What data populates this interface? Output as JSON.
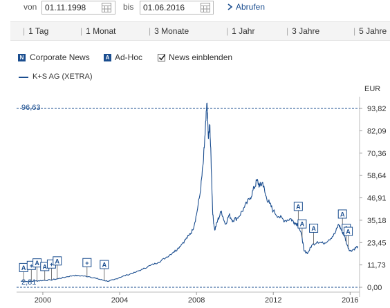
{
  "controls": {
    "from_label": "von",
    "from_value": "01.11.1998",
    "to_label": "bis",
    "to_value": "01.06.2016",
    "submit_label": "Abrufen"
  },
  "ranges": [
    "1 Tag",
    "1 Monat",
    "3 Monate",
    "1 Jahr",
    "3 Jahre",
    "5 Jahre"
  ],
  "legend": {
    "corporate_news": "Corporate News",
    "corporate_badge": "N",
    "adhoc": "Ad-Hoc",
    "adhoc_badge": "A",
    "show_news": "News einblenden",
    "show_news_checked": true
  },
  "colors": {
    "line": "#1a4d8f",
    "text": "#333333"
  },
  "chart_data": {
    "type": "line",
    "series": [
      {
        "name": "K+S AG (XETRA)",
        "points": [
          [
            1998.85,
            3.2
          ],
          [
            1999.2,
            3.0
          ],
          [
            1999.6,
            3.3
          ],
          [
            2000.0,
            3.6
          ],
          [
            2000.4,
            3.8
          ],
          [
            2000.8,
            4.5
          ],
          [
            2001.2,
            5.4
          ],
          [
            2001.6,
            6.2
          ],
          [
            2002.0,
            6.0
          ],
          [
            2002.4,
            5.6
          ],
          [
            2002.8,
            4.6
          ],
          [
            2003.1,
            3.8
          ],
          [
            2003.4,
            3.2
          ],
          [
            2003.7,
            3.9
          ],
          [
            2004.0,
            5.2
          ],
          [
            2004.4,
            6.5
          ],
          [
            2004.8,
            7.8
          ],
          [
            2005.2,
            9.5
          ],
          [
            2005.6,
            11.5
          ],
          [
            2006.0,
            13.0
          ],
          [
            2006.4,
            15.5
          ],
          [
            2006.8,
            18.5
          ],
          [
            2007.0,
            20.0
          ],
          [
            2007.3,
            23.5
          ],
          [
            2007.6,
            27.0
          ],
          [
            2007.8,
            30.0
          ],
          [
            2008.0,
            38.0
          ],
          [
            2008.2,
            50.0
          ],
          [
            2008.35,
            65.0
          ],
          [
            2008.45,
            80.0
          ],
          [
            2008.55,
            96.63
          ],
          [
            2008.62,
            78.0
          ],
          [
            2008.7,
            85.0
          ],
          [
            2008.78,
            60.0
          ],
          [
            2008.85,
            38.0
          ],
          [
            2008.95,
            30.0
          ],
          [
            2009.1,
            35.0
          ],
          [
            2009.3,
            40.0
          ],
          [
            2009.5,
            33.0
          ],
          [
            2009.7,
            38.0
          ],
          [
            2009.9,
            35.0
          ],
          [
            2010.2,
            37.0
          ],
          [
            2010.5,
            42.0
          ],
          [
            2010.8,
            47.0
          ],
          [
            2011.0,
            52.0
          ],
          [
            2011.15,
            56.0
          ],
          [
            2011.3,
            53.0
          ],
          [
            2011.45,
            55.0
          ],
          [
            2011.6,
            48.0
          ],
          [
            2011.8,
            44.0
          ],
          [
            2012.0,
            40.0
          ],
          [
            2012.3,
            37.0
          ],
          [
            2012.6,
            35.0
          ],
          [
            2012.9,
            36.0
          ],
          [
            2013.1,
            34.0
          ],
          [
            2013.3,
            33.0
          ],
          [
            2013.5,
            26.0
          ],
          [
            2013.6,
            19.0
          ],
          [
            2013.8,
            18.0
          ],
          [
            2014.0,
            22.0
          ],
          [
            2014.3,
            24.0
          ],
          [
            2014.6,
            23.0
          ],
          [
            2014.9,
            25.0
          ],
          [
            2015.2,
            28.0
          ],
          [
            2015.4,
            33.0
          ],
          [
            2015.55,
            30.0
          ],
          [
            2015.7,
            27.0
          ],
          [
            2015.85,
            22.0
          ],
          [
            2016.0,
            19.0
          ],
          [
            2016.2,
            20.0
          ],
          [
            2016.4,
            21.5
          ]
        ]
      }
    ],
    "xlim": [
      1998.85,
      2016.42
    ],
    "ylim": [
      0,
      93.82
    ],
    "x_ticks": [
      "2000",
      "2004",
      "2008",
      "2012",
      "2016"
    ],
    "x_tick_values": [
      2000,
      2004,
      2008,
      2012,
      2016
    ],
    "y_ticks": [
      "0,00",
      "11,73",
      "23,45",
      "35,18",
      "46,91",
      "58,64",
      "70,36",
      "82,09",
      "93,82"
    ],
    "y_tick_values": [
      0,
      11.73,
      23.45,
      35.18,
      46.91,
      58.64,
      70.36,
      82.09,
      93.82
    ],
    "unit": "EUR",
    "max_label": "96,63",
    "max_value": 96.63,
    "min_label": "2,81",
    "min_value": 2.81,
    "news_markers": [
      {
        "x": 1999.0,
        "type": "A"
      },
      {
        "x": 1999.4,
        "type": "+"
      },
      {
        "x": 1999.7,
        "type": "A"
      },
      {
        "x": 2000.1,
        "type": "A"
      },
      {
        "x": 2000.45,
        "type": "+"
      },
      {
        "x": 2000.75,
        "type": "A"
      },
      {
        "x": 2002.3,
        "type": "+"
      },
      {
        "x": 2003.2,
        "type": "A"
      },
      {
        "x": 2013.3,
        "type": "A"
      },
      {
        "x": 2013.5,
        "type": "A"
      },
      {
        "x": 2014.1,
        "type": "A"
      },
      {
        "x": 2015.6,
        "type": "A"
      },
      {
        "x": 2015.8,
        "type": "A"
      },
      {
        "x": 2015.9,
        "type": "A"
      }
    ]
  }
}
